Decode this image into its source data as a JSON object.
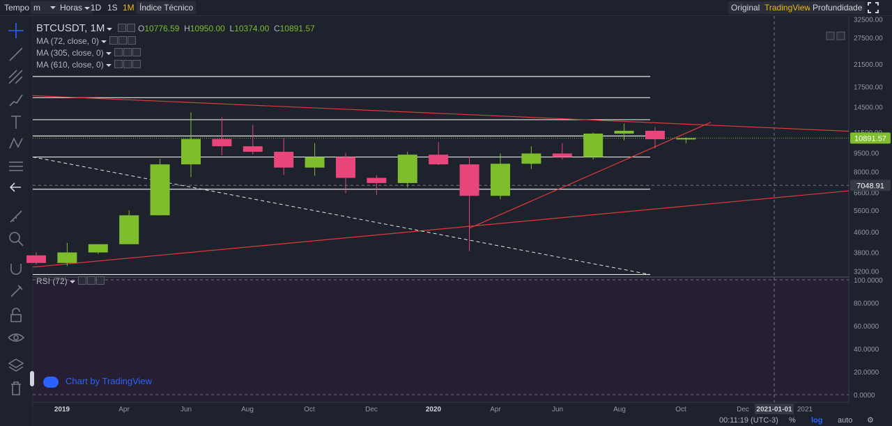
{
  "toolbar": {
    "tempo": "Tempo",
    "interval_select": "m",
    "hours_select": "Horas",
    "btn_1d": "1D",
    "btn_1s": "1S",
    "btn_1m": "1M",
    "indicators": "Índice Técnico",
    "view_original": "Original",
    "view_tradingview": "TradingView",
    "view_depth": "Profundidade",
    "fullscreen_icon": "fullscreen-icon"
  },
  "sidebar_icons": [
    "crosshair-icon",
    "trend-line-icon",
    "fib-icon",
    "brush-icon",
    "text-icon",
    "pattern-icon",
    "measure-icon",
    "back-arrow-icon",
    "ruler-icon",
    "zoom-icon",
    "magnet-icon",
    "lock-draw-icon",
    "lock-icon",
    "eye-icon",
    "layers-icon",
    "trash-icon"
  ],
  "legend": {
    "symbol": "BTCUSDT, 1M",
    "o_label": "O",
    "o_value": "10776.59",
    "h_label": "H",
    "h_value": "10950.00",
    "l_label": "L",
    "l_value": "10374.00",
    "c_label": "C",
    "c_value": "10891.57",
    "ma1": "MA (72, close, 0)",
    "ma2": "MA (305, close, 0)",
    "ma3": "MA (610, close, 0)",
    "rsi": "RSI (72)"
  },
  "watermark": "Chart by TradingView",
  "bottom": {
    "time": "00:11:19 (UTC-3)",
    "percent": "%",
    "log": "log",
    "auto": "auto"
  },
  "colors": {
    "up": "#7ebd2c",
    "down": "#e8457a",
    "trendline": "#e0393e",
    "accent": "#f0b90b",
    "price_label": "#7ebd2c"
  },
  "chart_data": {
    "type": "candlestick",
    "price_scale": "log",
    "ylim": [
      3050,
      33500
    ],
    "y_ticks": [
      32500,
      27500,
      21500,
      17500,
      14500,
      11500,
      9500,
      8000,
      6600,
      5600,
      4600,
      3800,
      3200
    ],
    "y_tick_labels": [
      "32500.00",
      "27500.00",
      "21500.00",
      "17500.00",
      "14500.00",
      "11500.00",
      "9500.00",
      "8000.00",
      "6600.00",
      "5600.00",
      "4600.00",
      "3800.00",
      "3200.00"
    ],
    "x_tick_labels": [
      "2019",
      "Apr",
      "Jun",
      "Aug",
      "Oct",
      "Dec",
      "2020",
      "Apr",
      "Jun",
      "Aug",
      "Oct",
      "Dec",
      "2021-01-01",
      "2021"
    ],
    "current_price_label": "10891.57",
    "level_price_label": "7048.91",
    "candles": [
      {
        "o": 3700,
        "h": 3800,
        "l": 3400,
        "c": 3450
      },
      {
        "o": 3450,
        "h": 4150,
        "l": 3350,
        "c": 3800
      },
      {
        "o": 3800,
        "h": 4100,
        "l": 3750,
        "c": 4100
      },
      {
        "o": 4100,
        "h": 5600,
        "l": 4100,
        "c": 5350
      },
      {
        "o": 5350,
        "h": 9000,
        "l": 5350,
        "c": 8550
      },
      {
        "o": 8550,
        "h": 13800,
        "l": 7600,
        "c": 10800
      },
      {
        "o": 10800,
        "h": 13200,
        "l": 9300,
        "c": 10100
      },
      {
        "o": 10100,
        "h": 12300,
        "l": 9400,
        "c": 9600
      },
      {
        "o": 9600,
        "h": 10900,
        "l": 7750,
        "c": 8300
      },
      {
        "o": 8300,
        "h": 10400,
        "l": 7700,
        "c": 9150
      },
      {
        "o": 9150,
        "h": 9500,
        "l": 6550,
        "c": 7550
      },
      {
        "o": 7550,
        "h": 7750,
        "l": 6450,
        "c": 7200
      },
      {
        "o": 7200,
        "h": 9600,
        "l": 6900,
        "c": 9350
      },
      {
        "o": 9350,
        "h": 10500,
        "l": 8500,
        "c": 8550
      },
      {
        "o": 8550,
        "h": 9200,
        "l": 3850,
        "c": 6400
      },
      {
        "o": 6400,
        "h": 9450,
        "l": 6200,
        "c": 8600
      },
      {
        "o": 8600,
        "h": 10100,
        "l": 8200,
        "c": 9450
      },
      {
        "o": 9450,
        "h": 10400,
        "l": 8950,
        "c": 9150
      },
      {
        "o": 9150,
        "h": 11450,
        "l": 8950,
        "c": 11350
      },
      {
        "o": 11350,
        "h": 12450,
        "l": 10650,
        "c": 11650
      },
      {
        "o": 11650,
        "h": 12050,
        "l": 9900,
        "c": 10776.59
      },
      {
        "o": 10776.59,
        "h": 10950,
        "l": 10374,
        "c": 10891.57
      }
    ],
    "horizontal_levels": [
      19200,
      15800,
      12900,
      11100,
      9150,
      6800,
      3100
    ],
    "rsi": {
      "name": "RSI (72)",
      "y_ticks": [
        100,
        80,
        60,
        40,
        20,
        0
      ],
      "y_tick_labels": [
        "100.0000",
        "80.0000",
        "60.0000",
        "40.0000",
        "20.0000",
        "0.0000"
      ]
    }
  }
}
